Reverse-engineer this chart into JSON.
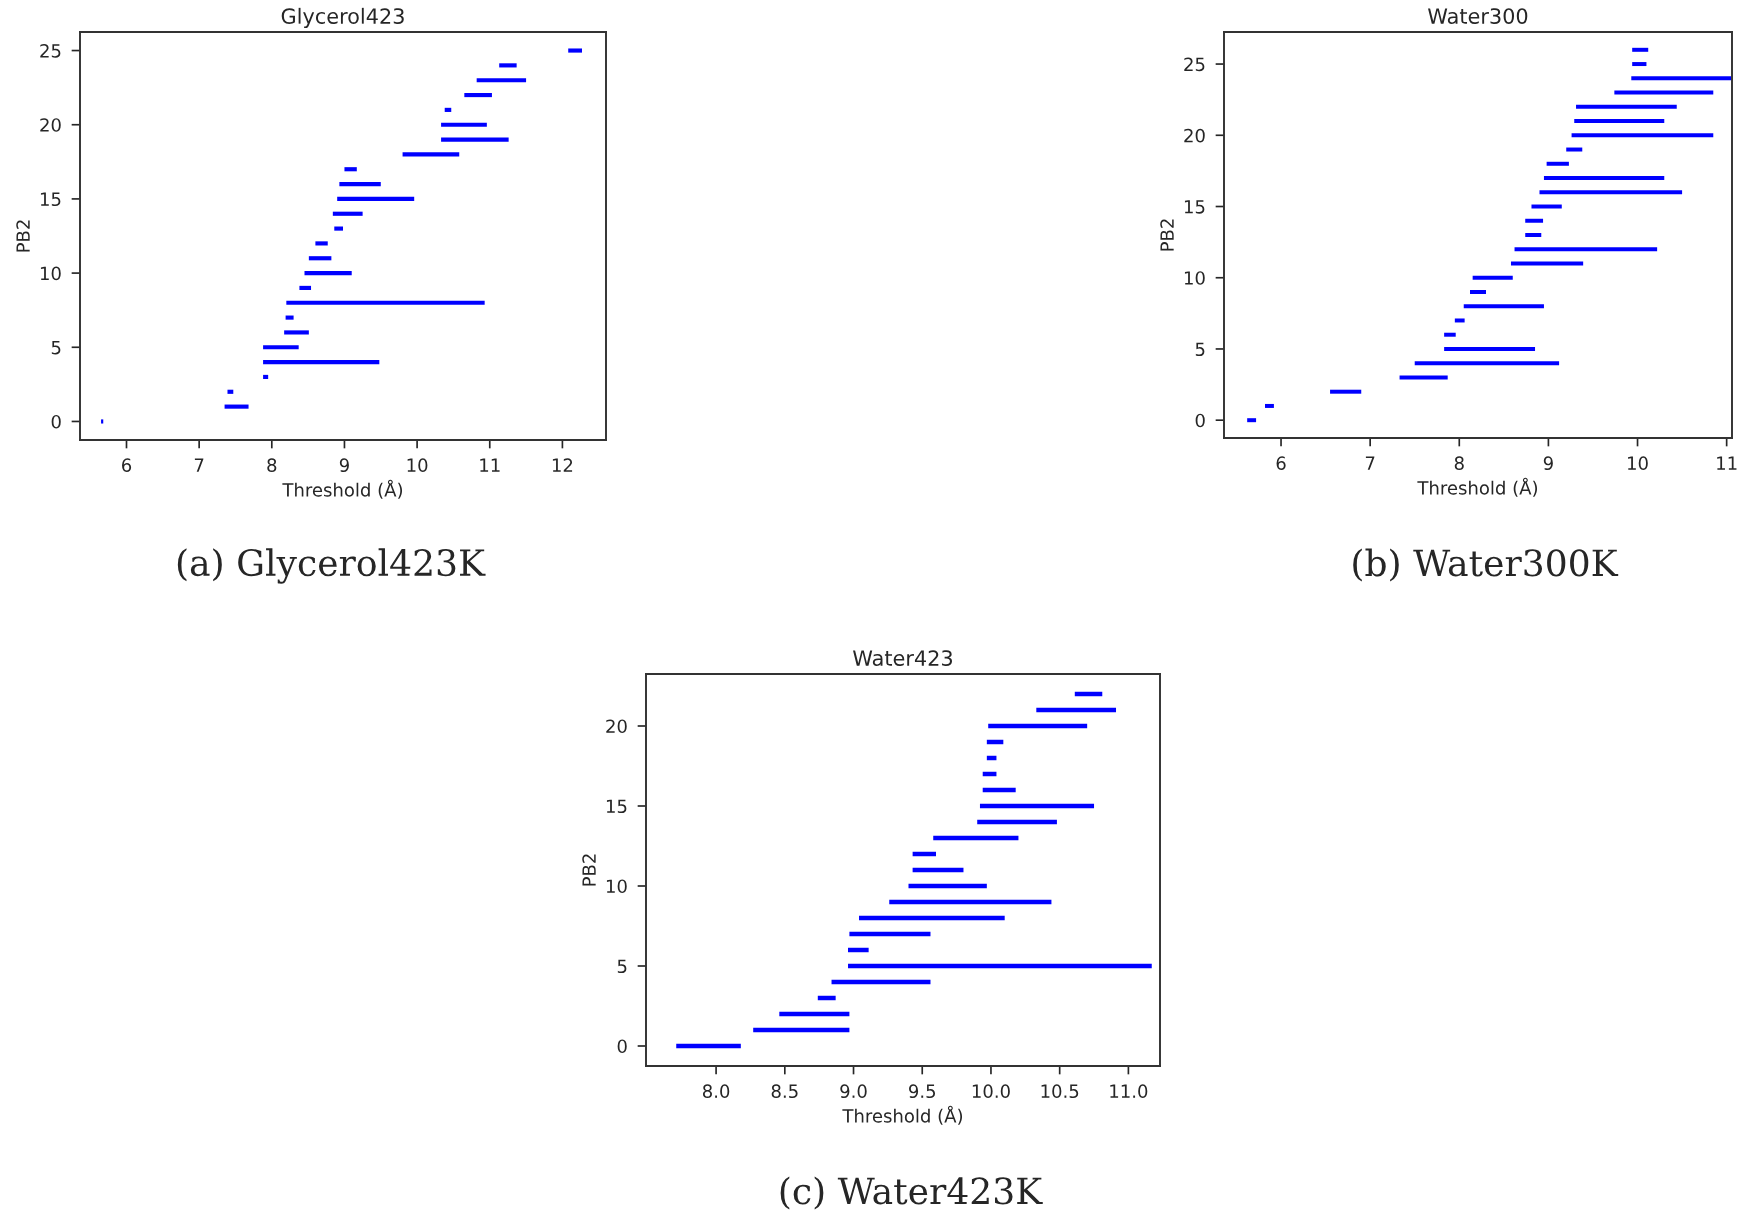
{
  "chart_data": [
    {
      "type": "bar",
      "orientation": "horizontal",
      "title": "Glycerol423",
      "xlabel": "Threshold (Å)",
      "ylabel": "PB2",
      "color": "#0000ff",
      "categories": [
        "25",
        null,
        null,
        null,
        null,
        "20",
        null,
        null,
        null,
        null,
        "15",
        null,
        null,
        null,
        null,
        "10",
        null,
        null,
        null,
        null,
        "5",
        null,
        null,
        null,
        null,
        "0"
      ],
      "base": [
        12.08,
        11.13,
        10.82,
        10.65,
        10.38,
        10.33,
        10.33,
        9.8,
        9.0,
        8.93,
        8.9,
        8.84,
        8.86,
        8.6,
        8.51,
        8.45,
        8.38,
        8.2,
        8.19,
        8.17,
        7.88,
        7.88,
        7.88,
        7.39,
        7.35,
        5.65
      ],
      "values": [
        0.19,
        0.24,
        0.68,
        0.38,
        0.09,
        0.63,
        0.93,
        0.78,
        0.17,
        0.57,
        1.06,
        0.41,
        0.12,
        0.17,
        0.31,
        0.65,
        0.16,
        2.73,
        0.11,
        0.34,
        0.49,
        1.6,
        0.07,
        0.08,
        0.33,
        0.03
      ],
      "xlim": [
        5.36,
        12.6
      ],
      "xticks": [
        6,
        7,
        8,
        9,
        10,
        11,
        12
      ],
      "annotations": [
        "(a) Glycerol423K"
      ]
    },
    {
      "type": "bar",
      "orientation": "horizontal",
      "title": "Water300",
      "xlabel": "Threshold (Å)",
      "ylabel": "PB2",
      "color": "#0000ff",
      "categories": [
        null,
        "25",
        null,
        null,
        null,
        null,
        "20",
        null,
        null,
        null,
        null,
        "15",
        null,
        null,
        null,
        null,
        "10",
        null,
        null,
        null,
        null,
        "5",
        null,
        null,
        null,
        null,
        "0"
      ],
      "base": [
        9.94,
        9.94,
        9.93,
        9.74,
        9.31,
        9.29,
        9.26,
        9.2,
        8.98,
        8.95,
        8.9,
        8.81,
        8.74,
        8.74,
        8.62,
        8.58,
        8.15,
        8.12,
        8.05,
        7.95,
        7.83,
        7.83,
        7.5,
        7.33,
        6.55,
        5.82,
        5.62
      ],
      "values": [
        0.18,
        0.16,
        1.12,
        1.11,
        1.13,
        1.01,
        1.59,
        0.18,
        0.25,
        1.35,
        1.6,
        0.34,
        0.2,
        0.18,
        1.6,
        0.81,
        0.45,
        0.18,
        0.9,
        0.11,
        0.13,
        1.02,
        1.62,
        0.54,
        0.35,
        0.1,
        0.1
      ],
      "xlim": [
        5.36,
        11.06
      ],
      "xticks": [
        6,
        7,
        8,
        9,
        10,
        11
      ],
      "annotations": [
        "(b) Water300K"
      ]
    },
    {
      "type": "bar",
      "orientation": "horizontal",
      "title": "Water423",
      "xlabel": "Threshold (Å)",
      "ylabel": "PB2",
      "color": "#0000ff",
      "categories": [
        null,
        null,
        "20",
        null,
        null,
        null,
        null,
        "15",
        null,
        null,
        null,
        null,
        "10",
        null,
        null,
        null,
        null,
        "5",
        null,
        null,
        null,
        null,
        "0"
      ],
      "base": [
        10.61,
        10.33,
        9.98,
        9.97,
        9.97,
        9.94,
        9.94,
        9.92,
        9.9,
        9.58,
        9.43,
        9.43,
        9.4,
        9.26,
        9.04,
        8.97,
        8.96,
        8.96,
        8.84,
        8.74,
        8.46,
        8.27,
        7.71
      ],
      "values": [
        0.2,
        0.58,
        0.72,
        0.12,
        0.07,
        0.1,
        0.24,
        0.83,
        0.58,
        0.62,
        0.17,
        0.37,
        0.57,
        1.18,
        1.06,
        0.59,
        0.15,
        2.21,
        0.72,
        0.13,
        0.51,
        0.7,
        0.47
      ],
      "xlim": [
        7.49,
        11.23
      ],
      "xticks": [
        {
          "value": 8,
          "label": "8.0"
        },
        {
          "value": 8.5,
          "label": "8.5"
        },
        {
          "value": 9,
          "label": "9.0"
        },
        {
          "value": 9.5,
          "label": "9.5"
        },
        {
          "value": 10,
          "label": "10.0"
        },
        {
          "value": 10.5,
          "label": "10.5"
        },
        {
          "value": 11,
          "label": "11.0"
        }
      ],
      "annotations": [
        "(c) Water423K"
      ]
    }
  ]
}
